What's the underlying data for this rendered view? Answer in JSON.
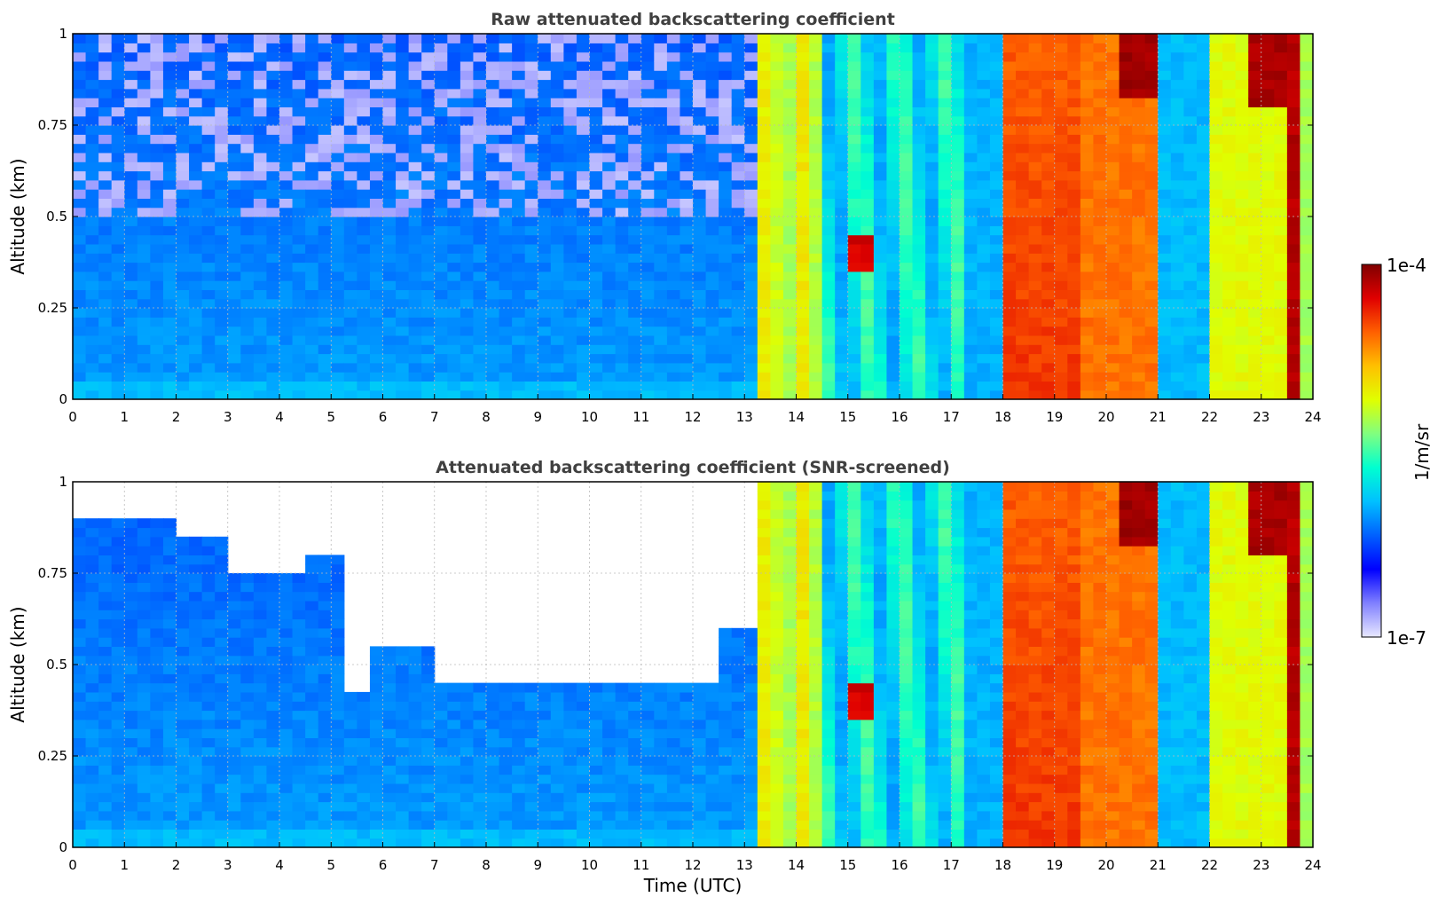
{
  "chart_data": [
    {
      "type": "heatmap",
      "title": "Raw attenuated backscattering coefficient",
      "xlabel": "",
      "ylabel": "Altitude (km)",
      "xlim": [
        0,
        24
      ],
      "ylim": [
        0,
        1
      ],
      "x_ticks": [
        "0",
        "1",
        "2",
        "3",
        "4",
        "5",
        "6",
        "7",
        "8",
        "9",
        "10",
        "11",
        "12",
        "13",
        "14",
        "15",
        "16",
        "17",
        "18",
        "19",
        "20",
        "21",
        "22",
        "23",
        "24"
      ],
      "y_ticks": [
        "0",
        "0.25",
        "0.5",
        "0.75",
        "1"
      ],
      "grid": true,
      "screened": false
    },
    {
      "type": "heatmap",
      "title": "Attenuated backscattering coefficient (SNR-screened)",
      "xlabel": "Time (UTC)",
      "ylabel": "Altitude (km)",
      "xlim": [
        0,
        24
      ],
      "ylim": [
        0,
        1
      ],
      "x_ticks": [
        "0",
        "1",
        "2",
        "3",
        "4",
        "5",
        "6",
        "7",
        "8",
        "9",
        "10",
        "11",
        "12",
        "13",
        "14",
        "15",
        "16",
        "17",
        "18",
        "19",
        "20",
        "21",
        "22",
        "23",
        "24"
      ],
      "y_ticks": [
        "0",
        "0.25",
        "0.5",
        "0.75",
        "1"
      ],
      "grid": true,
      "screened": true
    }
  ],
  "colorbar": {
    "label": "1/m/sr",
    "min_label": "1e-7",
    "max_label": "1e-4",
    "colors": [
      "#e8e8ff",
      "#8080ff",
      "#0000ff",
      "#0060ff",
      "#00c0ff",
      "#00ffd0",
      "#80ff80",
      "#e0ff00",
      "#ffc000",
      "#ff6000",
      "#e00000",
      "#800000"
    ]
  }
}
